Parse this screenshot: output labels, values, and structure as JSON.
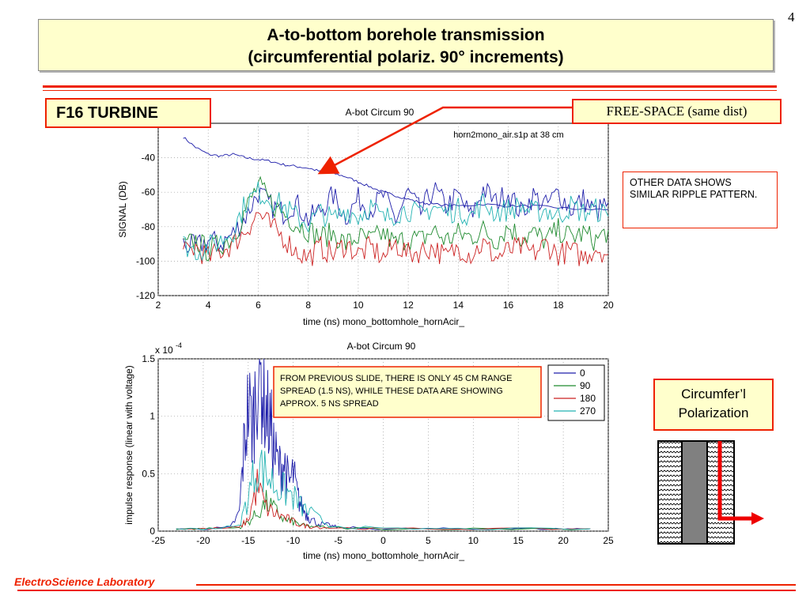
{
  "slide_number": "4",
  "title": {
    "line1": "A-to-bottom borehole transmission",
    "line2": "(circumferential polariz. 90° increments)"
  },
  "labels": {
    "f16": "F16 TURBINE",
    "free_space": "FREE-SPACE (same dist)",
    "other_data": "OTHER DATA SHOWS  SIMILAR RIPPLE PATTERN.",
    "polarization_line1": "Circumfer’l",
    "polarization_line2": "Polarization"
  },
  "footer": {
    "label": "ElectroScience Laboratory"
  },
  "colors": {
    "accent_red": "#ee2200",
    "callout_fill": "#ffffcc",
    "series_0": "#1e1eaa",
    "series_90": "#1e8a2e",
    "series_180": "#cc2222",
    "series_270": "#22b2b2"
  },
  "chart_data": [
    {
      "type": "line",
      "title": "A-bot Circum 90",
      "annotation": "horn2mono_air.s1p  at 38 cm",
      "xlabel": "time (ns)    mono_bottomhole_hornAcir_",
      "ylabel": "SIGNAL  (DB)",
      "xlim": [
        2,
        20
      ],
      "ylim": [
        -120,
        -20
      ],
      "xticks": [
        2,
        4,
        6,
        8,
        10,
        12,
        14,
        16,
        18,
        20
      ],
      "yticks": [
        -40,
        -60,
        -80,
        -100,
        -120
      ],
      "grid": true,
      "series": [
        {
          "name": "free-space",
          "x": [
            3.0,
            3.5,
            4.0,
            4.5,
            5.0,
            5.5,
            6.0,
            6.5,
            7.0,
            7.5,
            8.0,
            8.5,
            9.0,
            9.5,
            10.0,
            10.5,
            11.0,
            11.5,
            12.0,
            12.5,
            13.0,
            14.0,
            15.0,
            16.0,
            17.0,
            18.0,
            19.0,
            20.0
          ],
          "y": [
            -28,
            -34,
            -38,
            -39,
            -38,
            -40,
            -41,
            -42,
            -44,
            -45,
            -46,
            -48,
            -49,
            -51,
            -54,
            -57,
            -60,
            -62,
            -64,
            -66,
            -67,
            -68,
            -67,
            -68,
            -68,
            -69,
            -70,
            -70
          ]
        },
        {
          "name": "0",
          "x": [
            3.0,
            3.5,
            4.0,
            4.5,
            5.0,
            5.5,
            6.0,
            6.5,
            7.0,
            7.5,
            8.0,
            8.5,
            9.0,
            9.5,
            10.0,
            10.5,
            11.0,
            11.5,
            12.0,
            12.5,
            13.0,
            13.5,
            14.0,
            14.5,
            15.0,
            15.5,
            16.0,
            16.5,
            17.0,
            17.5,
            18.0,
            18.5,
            19.0,
            19.5,
            20.0
          ],
          "y": [
            -90,
            -92,
            -88,
            -90,
            -84,
            -74,
            -60,
            -68,
            -72,
            -66,
            -76,
            -70,
            -62,
            -74,
            -64,
            -70,
            -62,
            -76,
            -60,
            -72,
            -58,
            -68,
            -62,
            -74,
            -58,
            -66,
            -60,
            -72,
            -62,
            -68,
            -60,
            -70,
            -64,
            -72,
            -66
          ]
        },
        {
          "name": "90",
          "x": [
            3.0,
            3.5,
            4.0,
            4.5,
            5.0,
            5.5,
            6.0,
            6.5,
            7.0,
            7.5,
            8.0,
            8.5,
            9.0,
            9.5,
            10.0,
            10.5,
            11.0,
            11.5,
            12.0,
            12.5,
            13.0,
            13.5,
            14.0,
            14.5,
            15.0,
            15.5,
            16.0,
            16.5,
            17.0,
            17.5,
            18.0,
            18.5,
            19.0,
            19.5,
            20.0
          ],
          "y": [
            -92,
            -88,
            -94,
            -90,
            -86,
            -70,
            -56,
            -66,
            -72,
            -78,
            -82,
            -86,
            -84,
            -90,
            -86,
            -88,
            -84,
            -90,
            -86,
            -88,
            -82,
            -88,
            -84,
            -86,
            -82,
            -88,
            -80,
            -86,
            -84,
            -88,
            -82,
            -86,
            -84,
            -88,
            -82
          ]
        },
        {
          "name": "180",
          "x": [
            3.0,
            3.5,
            4.0,
            4.5,
            5.0,
            5.5,
            6.0,
            6.5,
            7.0,
            7.5,
            8.0,
            8.5,
            9.0,
            9.5,
            10.0,
            10.5,
            11.0,
            11.5,
            12.0,
            12.5,
            13.0,
            13.5,
            14.0,
            14.5,
            15.0,
            15.5,
            16.0,
            16.5,
            17.0,
            17.5,
            18.0,
            18.5,
            19.0,
            19.5,
            20.0
          ],
          "y": [
            -96,
            -92,
            -98,
            -94,
            -90,
            -82,
            -72,
            -80,
            -86,
            -94,
            -98,
            -92,
            -96,
            -90,
            -96,
            -92,
            -98,
            -90,
            -96,
            -94,
            -92,
            -98,
            -92,
            -96,
            -90,
            -98,
            -94,
            -92,
            -96,
            -90,
            -96,
            -94,
            -98,
            -92,
            -96
          ]
        },
        {
          "name": "270",
          "x": [
            3.0,
            3.5,
            4.0,
            4.5,
            5.0,
            5.5,
            6.0,
            6.5,
            7.0,
            7.5,
            8.0,
            8.5,
            9.0,
            9.5,
            10.0,
            10.5,
            11.0,
            11.5,
            12.0,
            12.5,
            13.0,
            13.5,
            14.0,
            14.5,
            15.0,
            15.5,
            16.0,
            16.5,
            17.0,
            17.5,
            18.0,
            18.5,
            19.0,
            19.5,
            20.0
          ],
          "y": [
            -90,
            -94,
            -92,
            -88,
            -82,
            -66,
            -60,
            -64,
            -68,
            -74,
            -78,
            -72,
            -76,
            -70,
            -74,
            -68,
            -76,
            -72,
            -70,
            -74,
            -68,
            -72,
            -70,
            -74,
            -66,
            -72,
            -70,
            -68,
            -72,
            -70,
            -74,
            -68,
            -72,
            -70,
            -74
          ]
        }
      ]
    },
    {
      "type": "line",
      "title": "A-bot Circum 90",
      "scale_note": "x 10",
      "scale_exponent": "-4",
      "xlabel": "time (ns)    mono_bottomhole_hornAcir_",
      "ylabel": "impulse response (linear with voltage)",
      "xlim": [
        -25,
        25
      ],
      "ylim": [
        0,
        1.5
      ],
      "xticks": [
        -25,
        -20,
        -15,
        -10,
        -5,
        0,
        5,
        10,
        15,
        20,
        25
      ],
      "yticks": [
        1.5,
        1,
        0.5,
        0
      ],
      "grid": true,
      "legend_position": "top-right",
      "annotation": "FROM PREVIOUS SLIDE, THERE IS ONLY 45 CM RANGE SPREAD (1.5 NS), WHILE THESE DATA ARE SHOWING APPROX. 5 NS SPREAD",
      "series": [
        {
          "name": "0",
          "x": [
            -23,
            -20,
            -17,
            -16,
            -15.5,
            -15,
            -14.5,
            -14,
            -13.5,
            -13,
            -12.5,
            -12,
            -11.5,
            -11,
            -10.5,
            -10,
            -9.5,
            -9,
            -8.5,
            -8,
            -7,
            -6,
            -5,
            0,
            5,
            10,
            15,
            20,
            23
          ],
          "y": [
            0.02,
            0.02,
            0.03,
            0.15,
            0.7,
            1.1,
            0.9,
            1.4,
            1.3,
            1.05,
            0.9,
            0.65,
            0.55,
            0.6,
            0.4,
            0.5,
            0.3,
            0.2,
            0.15,
            0.1,
            0.06,
            0.05,
            0.03,
            0.02,
            0.02,
            0.02,
            0.02,
            0.02,
            0.02
          ]
        },
        {
          "name": "90",
          "x": [
            -23,
            -20,
            -16,
            -15,
            -14,
            -13,
            -12,
            -11,
            -10,
            -9,
            -8,
            -6,
            0,
            10,
            23
          ],
          "y": [
            0.02,
            0.02,
            0.03,
            0.08,
            0.15,
            0.25,
            0.18,
            0.1,
            0.08,
            0.05,
            0.04,
            0.03,
            0.02,
            0.02,
            0.02
          ]
        },
        {
          "name": "180",
          "x": [
            -23,
            -20,
            -16,
            -15,
            -14,
            -13,
            -12,
            -11,
            -10,
            -9,
            -8,
            -6,
            0,
            10,
            23
          ],
          "y": [
            0.02,
            0.02,
            0.03,
            0.1,
            0.4,
            0.2,
            0.15,
            0.12,
            0.08,
            0.05,
            0.04,
            0.03,
            0.02,
            0.02,
            0.02
          ]
        },
        {
          "name": "270",
          "x": [
            -23,
            -20,
            -16,
            -15,
            -14,
            -13,
            -12,
            -11,
            -10,
            -9,
            -8,
            -6,
            0,
            10,
            23
          ],
          "y": [
            0.02,
            0.02,
            0.04,
            0.3,
            0.6,
            0.5,
            0.4,
            0.35,
            0.3,
            0.2,
            0.15,
            0.05,
            0.02,
            0.02,
            0.02
          ]
        }
      ]
    }
  ]
}
